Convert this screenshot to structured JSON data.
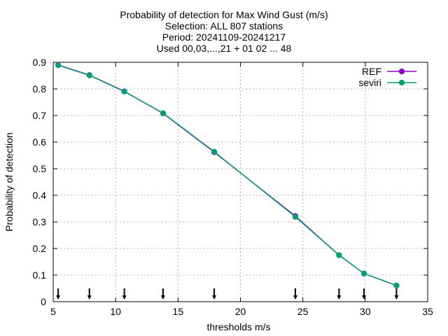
{
  "chart_data": {
    "type": "line",
    "title_lines": [
      "Probability of detection  for Max Wind Gust (m/s)",
      "Selection: ALL    807 stations",
      "Period: 20241109-20241217",
      "Used 00,03,...,21 + 01 02 ... 48"
    ],
    "xlabel": "thresholds m/s",
    "ylabel": "Probability of detection",
    "xlim": [
      5,
      35
    ],
    "ylim": [
      0,
      0.9
    ],
    "xticks": [
      5,
      10,
      15,
      20,
      25,
      30,
      35
    ],
    "yticks": [
      0,
      0.1,
      0.2,
      0.3,
      0.4,
      0.5,
      0.6,
      0.7,
      0.8,
      0.9
    ],
    "grid": true,
    "legend_position": "top-right",
    "threshold_markers_x": [
      5.4,
      7.9,
      10.7,
      13.8,
      17.9,
      24.4,
      27.9,
      29.9,
      32.5
    ],
    "series": [
      {
        "name": "REF",
        "color": "#9400d3",
        "x": [
          5.4,
          7.9,
          10.7,
          13.8,
          17.9,
          24.4,
          27.9,
          29.9,
          32.5
        ],
        "y": [
          0.89,
          0.852,
          0.791,
          0.708,
          0.562,
          0.322,
          0.175,
          0.106,
          0.061
        ]
      },
      {
        "name": "seviri",
        "color": "#009e73",
        "x": [
          5.4,
          7.9,
          10.7,
          13.8,
          17.9,
          24.4,
          27.9,
          29.9,
          32.5
        ],
        "y": [
          0.889,
          0.851,
          0.79,
          0.709,
          0.564,
          0.319,
          0.175,
          0.106,
          0.061
        ]
      }
    ]
  }
}
